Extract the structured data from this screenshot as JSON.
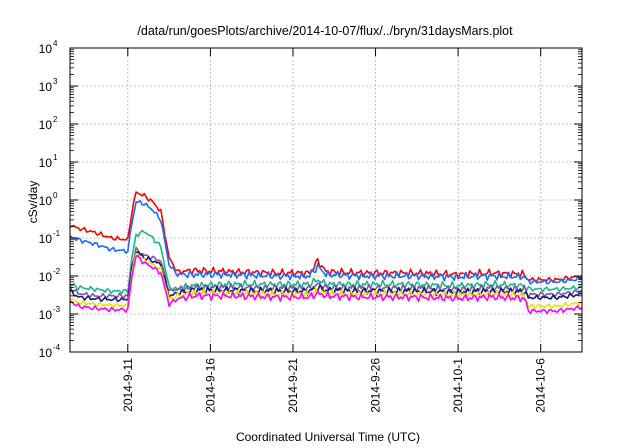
{
  "chart_data": {
    "type": "line",
    "title": "/data/run/goesPlots/archive/2014-10-07/flux/../bryn/31daysMars.plot",
    "xlabel": "Coordinated Universal Time (UTC)",
    "ylabel": "cSv/day",
    "yscale": "log",
    "ylim": [
      0.0001,
      10000
    ],
    "xlim": [
      "2014-09-07T12:00",
      "2014-10-08T12:00"
    ],
    "y_ticks": [
      {
        "base": "10",
        "exp": "-4"
      },
      {
        "base": "10",
        "exp": "-3"
      },
      {
        "base": "10",
        "exp": "-2"
      },
      {
        "base": "10",
        "exp": "-1"
      },
      {
        "base": "10",
        "exp": "0"
      },
      {
        "base": "10",
        "exp": "1"
      },
      {
        "base": "10",
        "exp": "2"
      },
      {
        "base": "10",
        "exp": "3"
      },
      {
        "base": "10",
        "exp": "4"
      }
    ],
    "x_ticks": [
      {
        "label": "2014-9-11",
        "date": "2014-09-11"
      },
      {
        "label": "2014-9-16",
        "date": "2014-09-16"
      },
      {
        "label": "2014-9-21",
        "date": "2014-09-21"
      },
      {
        "label": "2014-9-26",
        "date": "2014-09-26"
      },
      {
        "label": "2014-10-1",
        "date": "2014-10-01"
      },
      {
        "label": "2014-10-6",
        "date": "2014-10-06"
      }
    ],
    "grid": true,
    "series": [
      {
        "color": "#ff0000",
        "x": [
          "2014-09-07T12:00",
          "2014-09-08",
          "2014-09-09",
          "2014-09-10",
          "2014-09-11",
          "2014-09-11T06:00",
          "2014-09-11T12:00",
          "2014-09-12",
          "2014-09-12T12:00",
          "2014-09-13",
          "2014-09-13T12:00",
          "2014-09-14",
          "2014-09-15",
          "2014-09-17",
          "2014-09-20",
          "2014-09-22",
          "2014-09-22T12:00",
          "2014-09-23",
          "2014-09-25",
          "2014-09-28",
          "2014-10-01",
          "2014-10-03",
          "2014-10-05",
          "2014-10-05T06:00",
          "2014-10-07",
          "2014-10-08T12:00"
        ],
        "values": [
          0.22,
          0.18,
          0.14,
          0.1,
          0.09,
          0.5,
          1.6,
          1.3,
          0.9,
          0.5,
          0.03,
          0.013,
          0.014,
          0.013,
          0.012,
          0.012,
          0.025,
          0.013,
          0.012,
          0.012,
          0.011,
          0.012,
          0.011,
          0.008,
          0.008,
          0.01
        ]
      },
      {
        "color": "#1a6cff",
        "x": [
          "2014-09-07T12:00",
          "2014-09-08",
          "2014-09-09",
          "2014-09-10",
          "2014-09-11",
          "2014-09-11T06:00",
          "2014-09-11T12:00",
          "2014-09-12",
          "2014-09-12T12:00",
          "2014-09-13",
          "2014-09-13T12:00",
          "2014-09-14",
          "2014-09-15",
          "2014-09-17",
          "2014-09-20",
          "2014-09-22",
          "2014-09-22T12:00",
          "2014-09-23",
          "2014-09-25",
          "2014-09-28",
          "2014-10-01",
          "2014-10-03",
          "2014-10-05",
          "2014-10-05T06:00",
          "2014-10-07",
          "2014-10-08T12:00"
        ],
        "values": [
          0.11,
          0.09,
          0.07,
          0.05,
          0.045,
          0.25,
          0.9,
          0.8,
          0.55,
          0.3,
          0.02,
          0.011,
          0.011,
          0.011,
          0.01,
          0.01,
          0.018,
          0.011,
          0.01,
          0.01,
          0.0095,
          0.01,
          0.0095,
          0.007,
          0.007,
          0.0085
        ]
      },
      {
        "color": "#1db88a",
        "x": [
          "2014-09-07T12:00",
          "2014-09-08",
          "2014-09-09",
          "2014-09-10",
          "2014-09-11",
          "2014-09-11T06:00",
          "2014-09-11T12:00",
          "2014-09-12",
          "2014-09-12T12:00",
          "2014-09-13",
          "2014-09-13T12:00",
          "2014-09-14",
          "2014-09-15",
          "2014-09-17",
          "2014-09-20",
          "2014-09-22",
          "2014-09-22T12:00",
          "2014-09-23",
          "2014-09-25",
          "2014-09-28",
          "2014-10-01",
          "2014-10-03",
          "2014-10-05",
          "2014-10-05T06:00",
          "2014-10-07",
          "2014-10-08T12:00"
        ],
        "values": [
          0.006,
          0.005,
          0.0045,
          0.004,
          0.004,
          0.03,
          0.12,
          0.15,
          0.1,
          0.06,
          0.005,
          0.0045,
          0.0055,
          0.006,
          0.006,
          0.006,
          0.008,
          0.006,
          0.006,
          0.006,
          0.0055,
          0.006,
          0.0055,
          0.0045,
          0.0045,
          0.005
        ]
      },
      {
        "color": "#7a5aa0",
        "x": [
          "2014-09-07T12:00",
          "2014-09-08",
          "2014-09-09",
          "2014-09-10",
          "2014-09-11",
          "2014-09-11T06:00",
          "2014-09-11T12:00",
          "2014-09-12",
          "2014-09-12T12:00",
          "2014-09-13",
          "2014-09-13T12:00",
          "2014-09-14",
          "2014-09-15",
          "2014-09-17",
          "2014-09-20",
          "2014-09-22",
          "2014-09-22T12:00",
          "2014-09-23",
          "2014-09-25",
          "2014-09-28",
          "2014-10-01",
          "2014-10-03",
          "2014-10-05",
          "2014-10-05T06:00",
          "2014-10-07",
          "2014-10-08T12:00"
        ],
        "values": [
          0.005,
          0.0035,
          0.003,
          0.003,
          0.003,
          0.02,
          0.05,
          0.035,
          0.03,
          0.025,
          0.004,
          0.0045,
          0.005,
          0.005,
          0.0048,
          0.0048,
          0.006,
          0.005,
          0.0048,
          0.0048,
          0.0045,
          0.0048,
          0.0045,
          0.0033,
          0.0033,
          0.004
        ]
      },
      {
        "color": "#1a1a7a",
        "x": [
          "2014-09-07T12:00",
          "2014-09-08",
          "2014-09-09",
          "2014-09-10",
          "2014-09-11",
          "2014-09-11T06:00",
          "2014-09-11T12:00",
          "2014-09-12",
          "2014-09-12T12:00",
          "2014-09-13",
          "2014-09-13T12:00",
          "2014-09-14",
          "2014-09-15",
          "2014-09-17",
          "2014-09-20",
          "2014-09-22",
          "2014-09-22T12:00",
          "2014-09-23",
          "2014-09-25",
          "2014-09-28",
          "2014-10-01",
          "2014-10-03",
          "2014-10-05",
          "2014-10-05T06:00",
          "2014-10-07",
          "2014-10-08T12:00"
        ],
        "values": [
          0.004,
          0.0028,
          0.0025,
          0.0024,
          0.0024,
          0.015,
          0.045,
          0.03,
          0.025,
          0.02,
          0.003,
          0.0035,
          0.0042,
          0.0042,
          0.004,
          0.004,
          0.005,
          0.0042,
          0.004,
          0.004,
          0.0038,
          0.004,
          0.0038,
          0.0027,
          0.0027,
          0.0033
        ]
      },
      {
        "color": "#e6e600",
        "x": [
          "2014-09-07T12:00",
          "2014-09-08",
          "2014-09-09",
          "2014-09-10",
          "2014-09-11",
          "2014-09-11T06:00",
          "2014-09-11T12:00",
          "2014-09-12",
          "2014-09-12T12:00",
          "2014-09-13",
          "2014-09-13T12:00",
          "2014-09-14",
          "2014-09-15",
          "2014-09-17",
          "2014-09-20",
          "2014-09-22",
          "2014-09-22T12:00",
          "2014-09-23",
          "2014-09-25",
          "2014-09-28",
          "2014-10-01",
          "2014-10-03",
          "2014-10-05",
          "2014-10-05T06:00",
          "2014-10-07",
          "2014-10-08T12:00"
        ],
        "values": [
          0.0025,
          0.002,
          0.0018,
          0.0017,
          0.0017,
          0.012,
          0.04,
          0.025,
          0.02,
          0.015,
          0.0025,
          0.003,
          0.0035,
          0.0035,
          0.0033,
          0.0033,
          0.004,
          0.0035,
          0.0033,
          0.0033,
          0.0031,
          0.0033,
          0.0031,
          0.0016,
          0.0016,
          0.002
        ]
      },
      {
        "color": "#ff00ff",
        "x": [
          "2014-09-07T12:00",
          "2014-09-08",
          "2014-09-09",
          "2014-09-10",
          "2014-09-11",
          "2014-09-11T06:00",
          "2014-09-11T12:00",
          "2014-09-12",
          "2014-09-12T12:00",
          "2014-09-13",
          "2014-09-13T12:00",
          "2014-09-14",
          "2014-09-15",
          "2014-09-17",
          "2014-09-20",
          "2014-09-22",
          "2014-09-22T12:00",
          "2014-09-23",
          "2014-09-25",
          "2014-09-28",
          "2014-10-01",
          "2014-10-03",
          "2014-10-05",
          "2014-10-05T06:00",
          "2014-10-07",
          "2014-10-08T12:00"
        ],
        "values": [
          0.0022,
          0.0016,
          0.0014,
          0.0013,
          0.0013,
          0.01,
          0.035,
          0.022,
          0.017,
          0.012,
          0.0018,
          0.0025,
          0.003,
          0.003,
          0.0028,
          0.0028,
          0.0035,
          0.003,
          0.0028,
          0.0028,
          0.0026,
          0.0028,
          0.0026,
          0.0012,
          0.0012,
          0.0015
        ]
      }
    ]
  }
}
